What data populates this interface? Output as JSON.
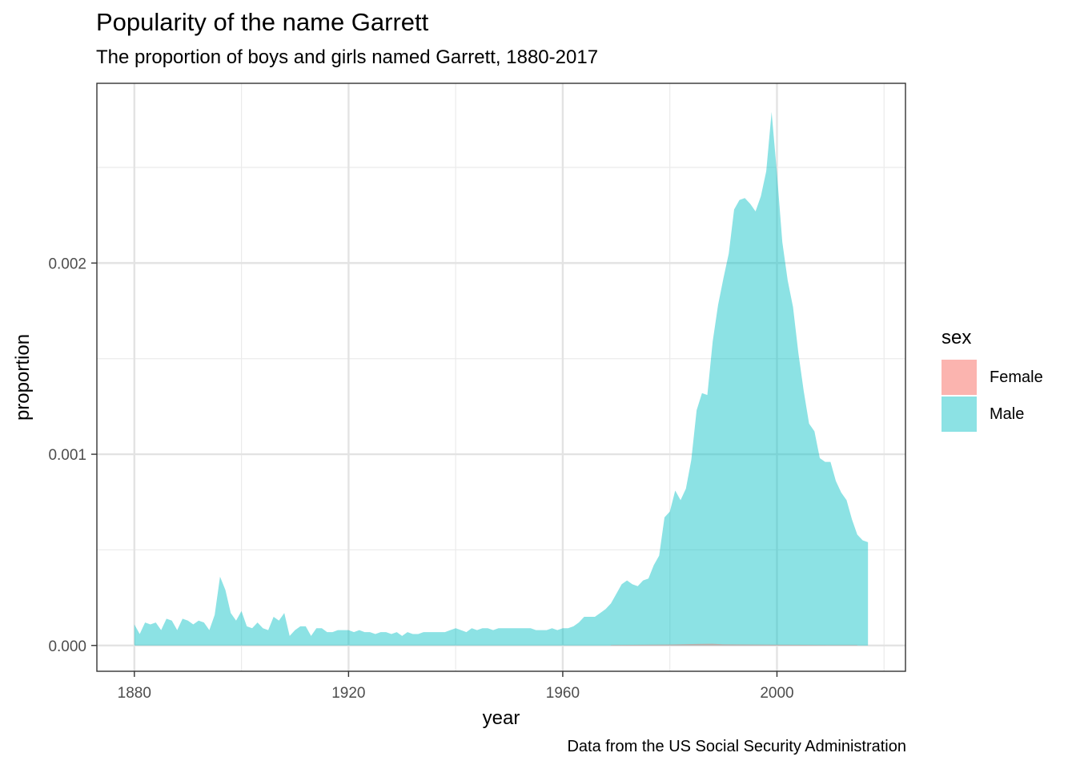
{
  "chart_data": {
    "type": "area",
    "title": "Popularity of the name Garrett",
    "subtitle": "The proportion of boys and girls named Garrett, 1880-2017",
    "caption": "Data from the US Social Security Administration",
    "xlabel": "year",
    "ylabel": "proportion",
    "xlim": [
      1873,
      2024
    ],
    "ylim": [
      -0.000135,
      0.00294
    ],
    "x_ticks": [
      1880,
      1920,
      1960,
      2000
    ],
    "y_ticks": [
      0.0,
      0.001,
      0.002
    ],
    "y_tick_labels": [
      "0.000",
      "0.001",
      "0.002"
    ],
    "grid": true,
    "legend": {
      "title": "sex",
      "position": "right"
    },
    "series": [
      {
        "name": "Female",
        "color": "#F8766D",
        "x": [
          1969,
          1975,
          1980,
          1985,
          1988,
          1990,
          1995,
          2000,
          2005,
          2010,
          2015
        ],
        "y": [
          2e-06,
          4e-06,
          5e-06,
          8e-06,
          9e-06,
          6e-06,
          5e-06,
          4e-06,
          3e-06,
          2e-06,
          2e-06
        ]
      },
      {
        "name": "Male",
        "color": "#00BFC4",
        "x": [
          1880,
          1881,
          1882,
          1883,
          1884,
          1885,
          1886,
          1887,
          1888,
          1889,
          1890,
          1891,
          1892,
          1893,
          1894,
          1895,
          1896,
          1897,
          1898,
          1899,
          1900,
          1901,
          1902,
          1903,
          1904,
          1905,
          1906,
          1907,
          1908,
          1909,
          1910,
          1911,
          1912,
          1913,
          1914,
          1915,
          1916,
          1917,
          1918,
          1919,
          1920,
          1921,
          1922,
          1923,
          1924,
          1925,
          1926,
          1927,
          1928,
          1929,
          1930,
          1931,
          1932,
          1933,
          1934,
          1935,
          1936,
          1937,
          1938,
          1939,
          1940,
          1941,
          1942,
          1943,
          1944,
          1945,
          1946,
          1947,
          1948,
          1949,
          1950,
          1951,
          1952,
          1953,
          1954,
          1955,
          1956,
          1957,
          1958,
          1959,
          1960,
          1961,
          1962,
          1963,
          1964,
          1965,
          1966,
          1967,
          1968,
          1969,
          1970,
          1971,
          1972,
          1973,
          1974,
          1975,
          1976,
          1977,
          1978,
          1979,
          1980,
          1981,
          1982,
          1983,
          1984,
          1985,
          1986,
          1987,
          1988,
          1989,
          1990,
          1991,
          1992,
          1993,
          1994,
          1995,
          1996,
          1997,
          1998,
          1999,
          2000,
          2001,
          2002,
          2003,
          2004,
          2005,
          2006,
          2007,
          2008,
          2009,
          2010,
          2011,
          2012,
          2013,
          2014,
          2015,
          2016,
          2017
        ],
        "y": [
          0.00011,
          6e-05,
          0.00012,
          0.00011,
          0.00012,
          8e-05,
          0.00014,
          0.00013,
          8e-05,
          0.00014,
          0.00013,
          0.00011,
          0.00013,
          0.00012,
          8e-05,
          0.00016,
          0.00036,
          0.00029,
          0.00017,
          0.00013,
          0.00018,
          0.0001,
          9e-05,
          0.00012,
          9e-05,
          8e-05,
          0.00015,
          0.00013,
          0.00017,
          5e-05,
          8e-05,
          0.0001,
          0.0001,
          5e-05,
          9e-05,
          9e-05,
          7e-05,
          7e-05,
          8e-05,
          8e-05,
          8e-05,
          7e-05,
          8e-05,
          7e-05,
          7e-05,
          6e-05,
          7e-05,
          7e-05,
          6e-05,
          7e-05,
          5e-05,
          7e-05,
          6e-05,
          6e-05,
          7e-05,
          7e-05,
          7e-05,
          7e-05,
          7e-05,
          8e-05,
          9e-05,
          8e-05,
          7e-05,
          9e-05,
          8e-05,
          9e-05,
          9e-05,
          8e-05,
          9e-05,
          9e-05,
          9e-05,
          9e-05,
          9e-05,
          9e-05,
          9e-05,
          8e-05,
          8e-05,
          8e-05,
          9e-05,
          8e-05,
          9e-05,
          9e-05,
          0.0001,
          0.00012,
          0.00015,
          0.00015,
          0.00015,
          0.00017,
          0.00019,
          0.00022,
          0.00027,
          0.00032,
          0.00034,
          0.00032,
          0.00031,
          0.00034,
          0.00035,
          0.00042,
          0.00047,
          0.00067,
          0.0007,
          0.00081,
          0.00076,
          0.00082,
          0.00097,
          0.00123,
          0.00132,
          0.00131,
          0.00159,
          0.00178,
          0.00192,
          0.00205,
          0.00228,
          0.00233,
          0.00234,
          0.00231,
          0.00227,
          0.00235,
          0.00248,
          0.00279,
          0.00247,
          0.00211,
          0.00191,
          0.00177,
          0.00153,
          0.00133,
          0.00116,
          0.00112,
          0.00098,
          0.00096,
          0.00096,
          0.00086,
          0.0008,
          0.00076,
          0.00066,
          0.00058,
          0.00055,
          0.00054
        ]
      }
    ]
  }
}
